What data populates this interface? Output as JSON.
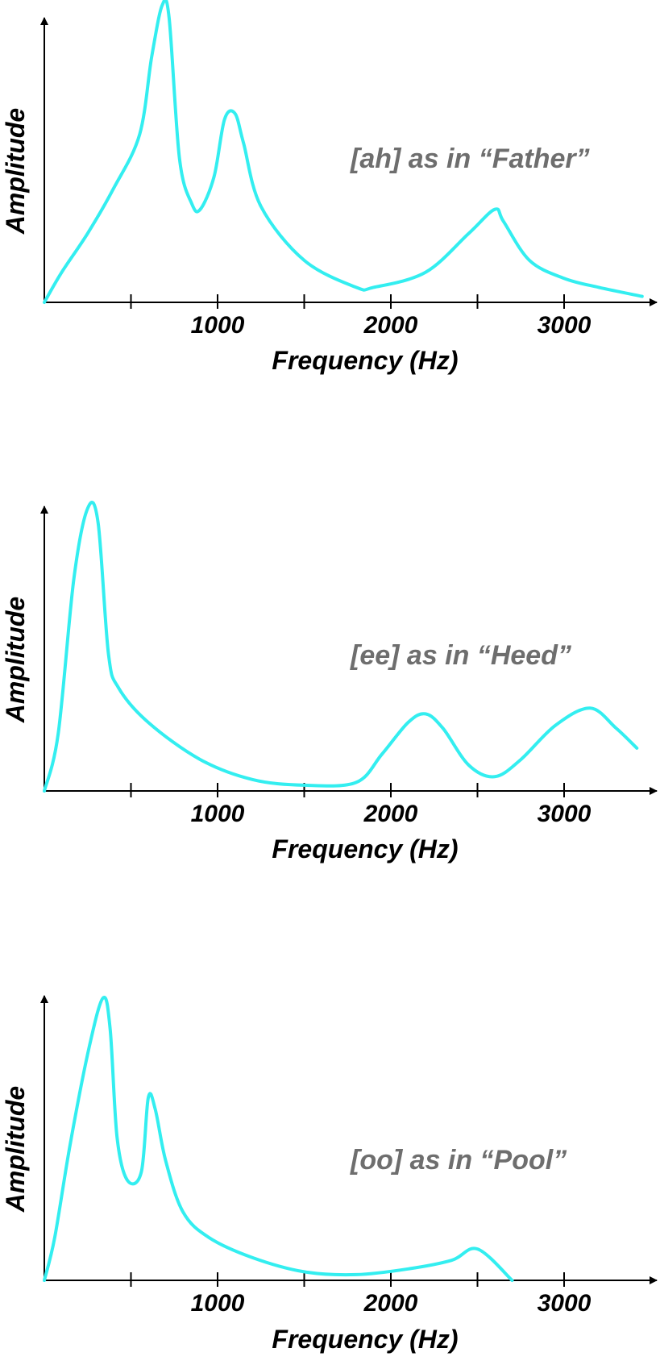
{
  "chart_data": [
    {
      "type": "line",
      "annotation": "[ah] as in “Father”",
      "xlabel": "Frequency (Hz)",
      "ylabel": "Amplitude",
      "xlim": [
        0,
        3500
      ],
      "ylim": [
        0,
        1
      ],
      "x_tick_marks": [
        500,
        1000,
        1500,
        2000,
        2500,
        3000
      ],
      "x_tick_labels": [
        {
          "value": 1000,
          "label": "1000"
        },
        {
          "value": 2000,
          "label": "2000"
        },
        {
          "value": 3000,
          "label": "3000"
        }
      ],
      "grid": false,
      "line_color": "#33eef0",
      "series": [
        {
          "x": [
            0,
            100,
            250,
            400,
            550,
            620,
            680,
            720,
            780,
            850,
            900,
            980,
            1040,
            1100,
            1150,
            1250,
            1500,
            1800,
            1900,
            2200,
            2450,
            2600,
            2650,
            2800,
            3000,
            3200,
            3450
          ],
          "y": [
            0.0,
            0.1,
            0.23,
            0.38,
            0.56,
            0.82,
            0.99,
            0.95,
            0.48,
            0.33,
            0.31,
            0.42,
            0.61,
            0.63,
            0.53,
            0.32,
            0.14,
            0.05,
            0.05,
            0.1,
            0.23,
            0.31,
            0.27,
            0.14,
            0.08,
            0.05,
            0.02
          ]
        }
      ]
    },
    {
      "type": "line",
      "annotation": "[ee] as in “Heed”",
      "xlabel": "Frequency (Hz)",
      "ylabel": "Amplitude",
      "xlim": [
        0,
        3500
      ],
      "ylim": [
        0,
        1
      ],
      "x_tick_marks": [
        500,
        1000,
        1500,
        2000,
        2500,
        3000
      ],
      "x_tick_labels": [
        {
          "value": 1000,
          "label": "1000"
        },
        {
          "value": 2000,
          "label": "2000"
        },
        {
          "value": 3000,
          "label": "3000"
        }
      ],
      "grid": false,
      "line_color": "#33eef0",
      "series": [
        {
          "x": [
            0,
            80,
            170,
            250,
            310,
            370,
            430,
            600,
            900,
            1200,
            1500,
            1800,
            1950,
            2100,
            2200,
            2300,
            2450,
            2600,
            2750,
            2950,
            3150,
            3300,
            3420
          ],
          "y": [
            0.0,
            0.2,
            0.74,
            0.99,
            0.94,
            0.48,
            0.36,
            0.24,
            0.11,
            0.04,
            0.02,
            0.03,
            0.13,
            0.24,
            0.27,
            0.22,
            0.09,
            0.05,
            0.11,
            0.23,
            0.29,
            0.22,
            0.15
          ]
        }
      ]
    },
    {
      "type": "line",
      "annotation": "[oo] as in “Pool”",
      "xlabel": "Frequency (Hz)",
      "ylabel": "Amplitude",
      "xlim": [
        0,
        3500
      ],
      "ylim": [
        0,
        1
      ],
      "x_tick_marks": [
        500,
        1000,
        1500,
        2000,
        2500,
        3000
      ],
      "x_tick_labels": [
        {
          "value": 1000,
          "label": "1000"
        },
        {
          "value": 2000,
          "label": "2000"
        },
        {
          "value": 3000,
          "label": "3000"
        }
      ],
      "grid": false,
      "line_color": "#33eef0",
      "series": [
        {
          "x": [
            0,
            60,
            150,
            260,
            340,
            380,
            420,
            480,
            560,
            600,
            640,
            700,
            800,
            950,
            1200,
            1500,
            1800,
            2100,
            2350,
            2500,
            2700
          ],
          "y": [
            0.0,
            0.15,
            0.48,
            0.82,
            0.99,
            0.88,
            0.5,
            0.35,
            0.38,
            0.64,
            0.6,
            0.42,
            0.24,
            0.15,
            0.08,
            0.03,
            0.02,
            0.04,
            0.07,
            0.11,
            0.0
          ]
        }
      ]
    }
  ]
}
